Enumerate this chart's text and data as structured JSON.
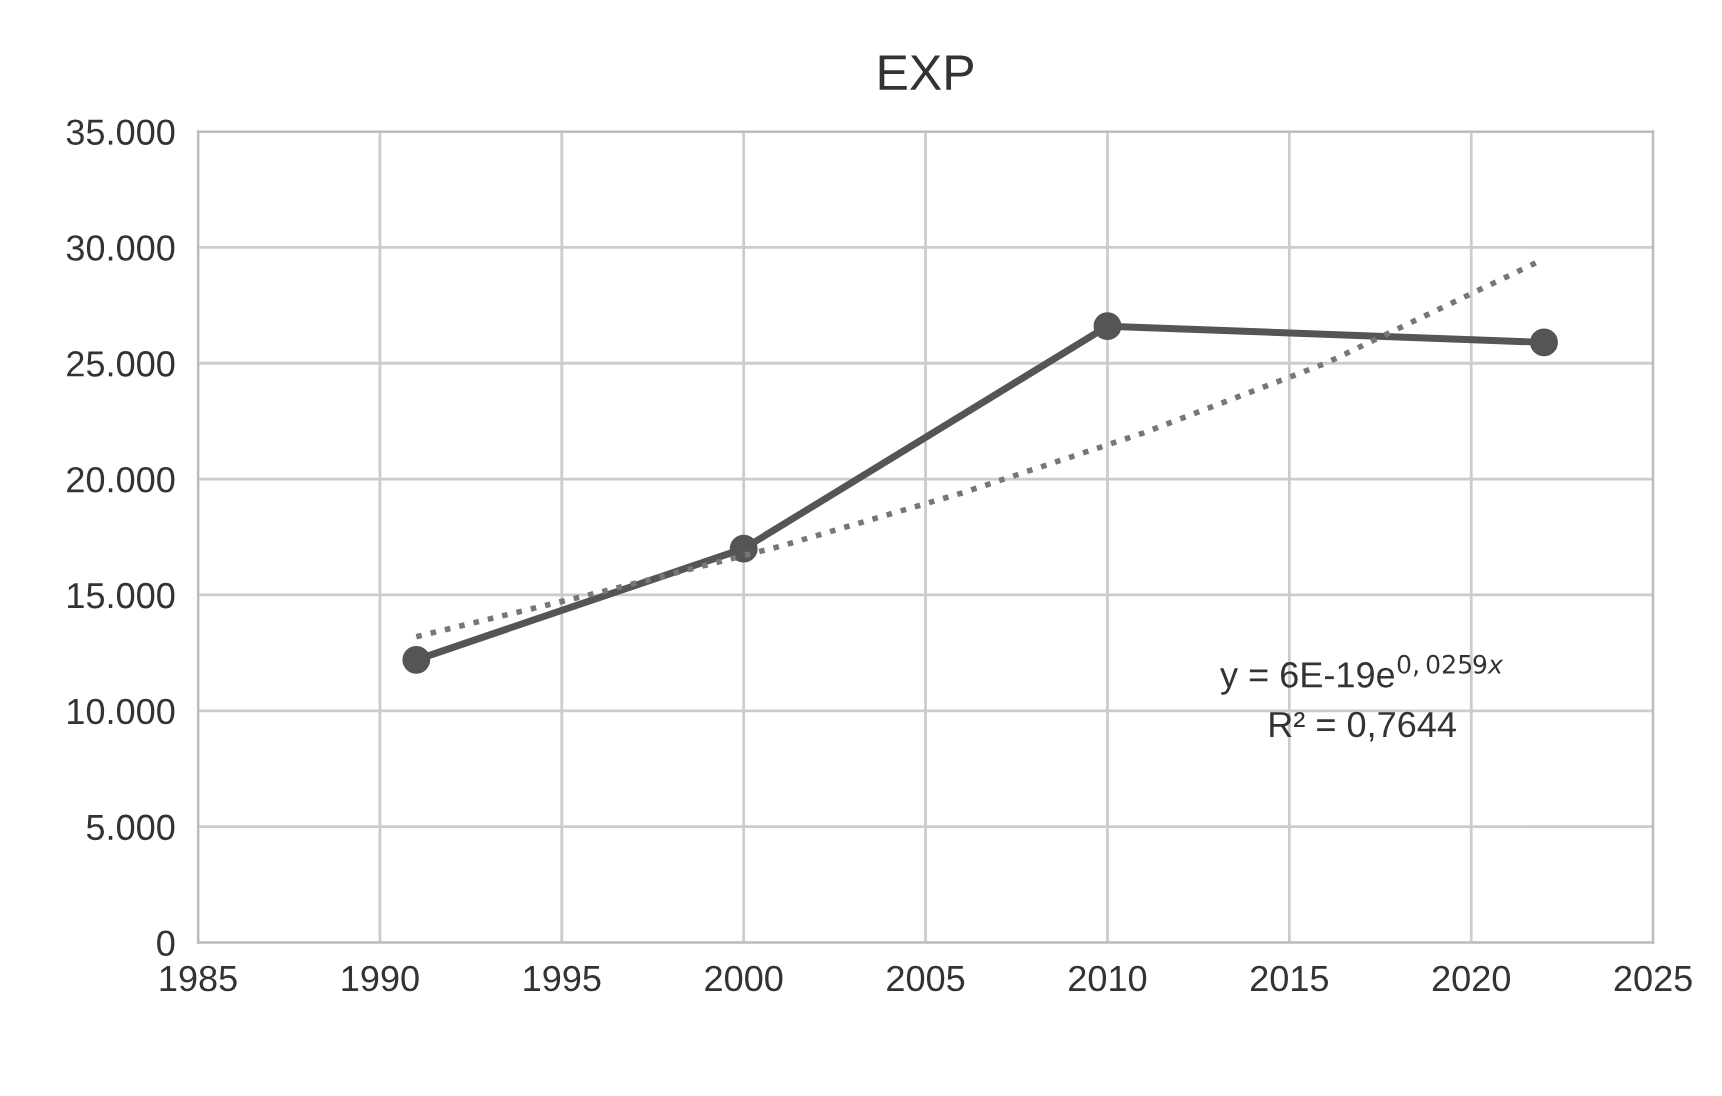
{
  "chart_data": {
    "type": "line",
    "title": "EXP",
    "series": [
      {
        "color": "#555555",
        "x": [
          1991,
          2000,
          2010,
          2022
        ],
        "values": [
          12200,
          17000,
          26600,
          25900
        ],
        "marker": "circle",
        "line_style": "solid"
      },
      {
        "color": "#777777",
        "x": [
          1991,
          1996,
          2001,
          2006,
          2011,
          2016,
          2022
        ],
        "values": [
          13200,
          15100,
          17100,
          19400,
          22000,
          25000,
          29500
        ],
        "marker": "none",
        "line_style": "dotted"
      }
    ],
    "annotations": [
      "y = 6E-19e$^{0,0259x}$",
      "R² = 0,7644"
    ],
    "xlim": [
      1985,
      2025
    ],
    "xticks": [
      1985,
      1990,
      1995,
      2000,
      2005,
      2010,
      2015,
      2020,
      2025
    ],
    "ylim": [
      0,
      35000
    ],
    "yticks": [
      {
        "value": 0,
        "label": "0"
      },
      {
        "value": 5000,
        "label": "5.000"
      },
      {
        "value": 10000,
        "label": "10.000"
      },
      {
        "value": 15000,
        "label": "15.000"
      },
      {
        "value": 20000,
        "label": "20.000"
      },
      {
        "value": 25000,
        "label": "25.000"
      },
      {
        "value": 30000,
        "label": "30.000"
      },
      {
        "value": 35000,
        "label": "35.000"
      }
    ],
    "grid": true
  }
}
